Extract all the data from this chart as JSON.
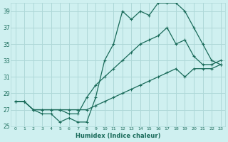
{
  "xlabel": "Humidex (Indice chaleur)",
  "background_color": "#cff0f0",
  "grid_color": "#aed8d8",
  "line_color": "#1a6b5a",
  "xlim": [
    -0.5,
    23.5
  ],
  "ylim": [
    25,
    40
  ],
  "yticks": [
    25,
    27,
    29,
    31,
    33,
    35,
    37,
    39
  ],
  "xticks": [
    0,
    1,
    2,
    3,
    4,
    5,
    6,
    7,
    8,
    9,
    10,
    11,
    12,
    13,
    14,
    15,
    16,
    17,
    18,
    19,
    20,
    21,
    22,
    23
  ],
  "line_top_x": [
    0,
    1,
    2,
    3,
    4,
    5,
    6,
    7,
    8,
    9,
    10,
    11,
    12,
    13,
    14,
    15,
    16,
    17,
    18,
    19,
    20,
    21,
    22,
    23
  ],
  "line_top_y": [
    28,
    28,
    27,
    26.5,
    26.5,
    25.5,
    26,
    25.5,
    25.5,
    28.5,
    33,
    35,
    39,
    38,
    39,
    38.5,
    40,
    40,
    40,
    39,
    37,
    35,
    33,
    32.5
  ],
  "line_mid_x": [
    0,
    1,
    2,
    3,
    4,
    5,
    6,
    7,
    8,
    9,
    10,
    11,
    12,
    13,
    14,
    15,
    16,
    17,
    18,
    19,
    20,
    21,
    22,
    23
  ],
  "line_mid_y": [
    28,
    28,
    27,
    27,
    27,
    27,
    26.5,
    26.5,
    28.5,
    30,
    31,
    32,
    33,
    34,
    35,
    35.5,
    36,
    37,
    35,
    35.5,
    33.5,
    32.5,
    32.5,
    33
  ],
  "line_bot_x": [
    0,
    1,
    2,
    3,
    4,
    5,
    6,
    7,
    8,
    9,
    10,
    11,
    12,
    13,
    14,
    15,
    16,
    17,
    18,
    19,
    20,
    21,
    22,
    23
  ],
  "line_bot_y": [
    28,
    28,
    27,
    27,
    27,
    27,
    27,
    27,
    27,
    27.5,
    28,
    28.5,
    29,
    29.5,
    30,
    30.5,
    31,
    31.5,
    32,
    31,
    32,
    32,
    32,
    32.5
  ]
}
